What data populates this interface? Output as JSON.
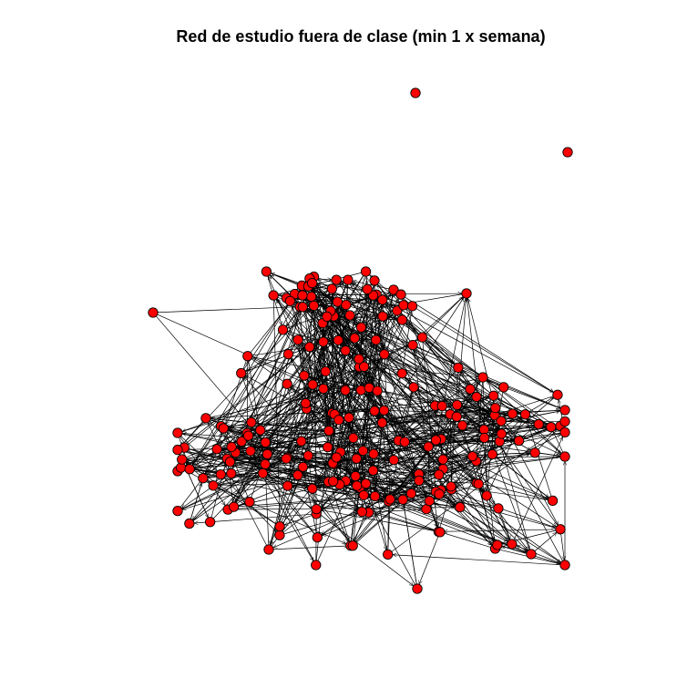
{
  "figure": {
    "title": "Red de estudio fuera de clase (min 1 x semana)"
  },
  "style": {
    "node_fill": "#ff0000",
    "node_stroke": "#000000",
    "edge_color": "#000000",
    "background": "#ffffff"
  },
  "chart_data": {
    "type": "network",
    "directed": true,
    "node_count": 230,
    "isolated_nodes": 2,
    "layout": "force-directed",
    "title": "Red de estudio fuera de clase (min 1 x semana)"
  }
}
